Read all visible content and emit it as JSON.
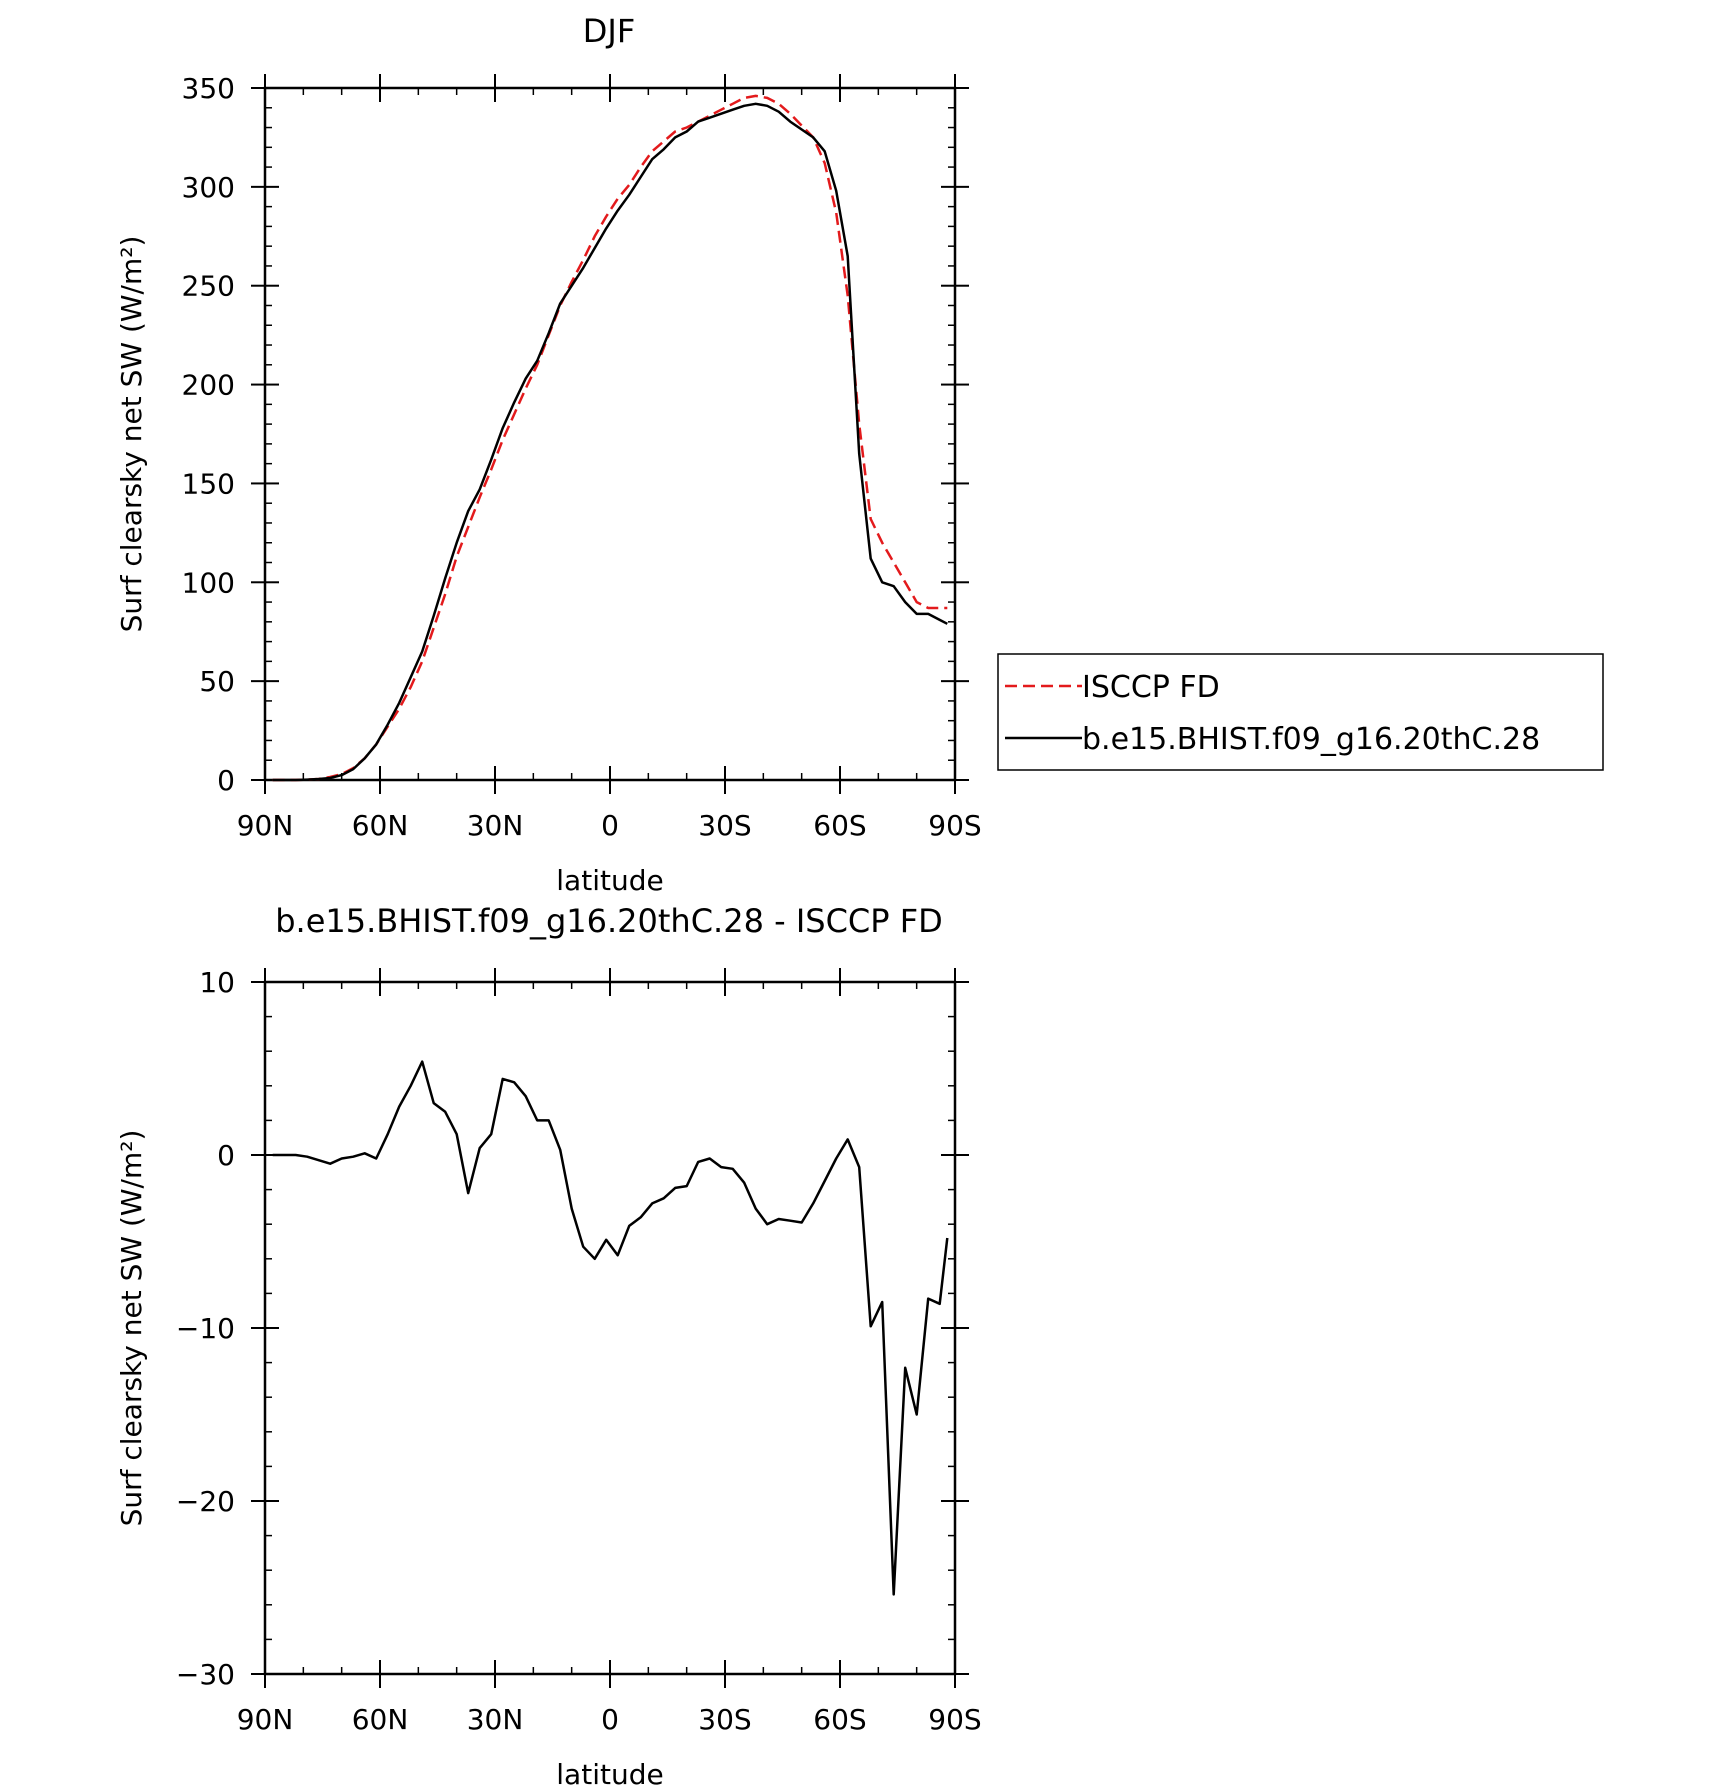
{
  "chart_data": [
    {
      "type": "line",
      "title": "DJF",
      "xlabel": "latitude",
      "ylabel": "Surf clearsky net SW (W/m²)",
      "x_tick_labels": [
        "90N",
        "60N",
        "30N",
        "0",
        "30S",
        "60S",
        "90S"
      ],
      "x_ticks": [
        90,
        60,
        30,
        0,
        -30,
        -60,
        -90
      ],
      "xlim": [
        90,
        -90
      ],
      "y_tick_labels": [
        "0",
        "50",
        "100",
        "150",
        "200",
        "250",
        "300",
        "350"
      ],
      "y_ticks": [
        0,
        50,
        100,
        150,
        200,
        250,
        300,
        350
      ],
      "ylim": [
        0,
        350
      ],
      "legend": "right",
      "x": [
        88,
        85,
        82,
        79,
        76,
        73,
        70,
        67,
        64,
        61,
        58,
        55,
        52,
        49,
        46,
        43,
        40,
        37,
        34,
        31,
        28,
        25,
        22,
        19,
        16,
        13,
        10,
        7,
        4,
        1,
        -2,
        -5,
        -8,
        -11,
        -14,
        -17,
        -20,
        -23,
        -26,
        -29,
        -32,
        -35,
        -38,
        -41,
        -44,
        -47,
        -50,
        -53,
        -56,
        -59,
        -62,
        -65,
        -68,
        -71,
        -74,
        -77,
        -80,
        -83,
        -86,
        -88
      ],
      "series": [
        {
          "name": "ISCCP FD",
          "color": "#e31a1c",
          "dash": "dashed",
          "values": [
            0,
            0,
            0,
            0.2,
            0.5,
            1.5,
            3,
            6,
            11,
            18,
            27,
            36,
            47,
            60,
            77,
            94,
            113,
            128,
            143,
            157,
            172,
            185,
            198,
            210,
            225,
            240,
            252,
            263,
            275,
            285,
            294,
            301,
            310,
            318,
            323,
            328,
            330,
            333,
            336,
            339,
            342,
            345,
            346,
            345,
            342,
            337,
            331,
            325,
            312,
            287,
            245,
            180,
            132,
            120,
            110,
            100,
            90,
            87,
            87,
            87
          ]
        },
        {
          "name": "b.e15.BHIST.f09_g16.20thC.28",
          "color": "#000000",
          "dash": "solid",
          "values": [
            0,
            0,
            0,
            0.2,
            0.5,
            1,
            2.5,
            5.5,
            11,
            18,
            28,
            39,
            52,
            65,
            83,
            102,
            120,
            136,
            147,
            162,
            178,
            191,
            203,
            212,
            226,
            241,
            250,
            259,
            269,
            279,
            288,
            296,
            305,
            314,
            319,
            325,
            328,
            333,
            335,
            337,
            339,
            341,
            342,
            341,
            338,
            333,
            329,
            325,
            318,
            298,
            265,
            165,
            112,
            100,
            98,
            90,
            84,
            84,
            81,
            79
          ]
        }
      ]
    },
    {
      "type": "line",
      "title": "b.e15.BHIST.f09_g16.20thC.28 - ISCCP FD",
      "xlabel": "latitude",
      "ylabel": "Surf clearsky net SW (W/m²)",
      "x_tick_labels": [
        "90N",
        "60N",
        "30N",
        "0",
        "30S",
        "60S",
        "90S"
      ],
      "x_ticks": [
        90,
        60,
        30,
        0,
        -30,
        -60,
        -90
      ],
      "xlim": [
        90,
        -90
      ],
      "y_tick_labels": [
        "10",
        "0",
        "−10",
        "−20",
        "−30"
      ],
      "y_ticks": [
        10,
        0,
        -10,
        -20,
        -30
      ],
      "ylim": [
        -30,
        10
      ],
      "x": [
        88,
        85,
        82,
        79,
        76,
        73,
        70,
        67,
        64,
        61,
        58,
        55,
        52,
        49,
        46,
        43,
        40,
        37,
        34,
        31,
        28,
        25,
        22,
        19,
        16,
        13,
        10,
        7,
        4,
        1,
        -2,
        -5,
        -8,
        -11,
        -14,
        -17,
        -20,
        -23,
        -26,
        -29,
        -32,
        -35,
        -38,
        -41,
        -44,
        -47,
        -50,
        -53,
        -56,
        -59,
        -62,
        -65,
        -68,
        -71,
        -74,
        -77,
        -80,
        -83,
        -86,
        -88
      ],
      "series": [
        {
          "color": "#000000",
          "dash": "solid",
          "values": [
            0,
            0,
            0,
            -0.1,
            -0.3,
            -0.5,
            -0.2,
            -0.1,
            0.1,
            -0.2,
            1.2,
            2.8,
            4,
            5.4,
            3,
            2.5,
            1.2,
            -2.2,
            0.4,
            1.2,
            4.4,
            4.2,
            3.4,
            2,
            2,
            0.3,
            -3.1,
            -5.3,
            -6,
            -4.9,
            -5.8,
            -4.1,
            -3.6,
            -2.8,
            -2.5,
            -1.9,
            -1.8,
            -0.4,
            -0.2,
            -0.7,
            -0.8,
            -1.6,
            -3.1,
            -4,
            -3.7,
            -3.8,
            -3.9,
            -2.8,
            -1.5,
            -0.2,
            0.9,
            -0.7,
            -9.9,
            -8.5,
            -25.4,
            -12.3,
            -15,
            -8.3,
            -8.6,
            -4.8
          ]
        }
      ]
    }
  ]
}
